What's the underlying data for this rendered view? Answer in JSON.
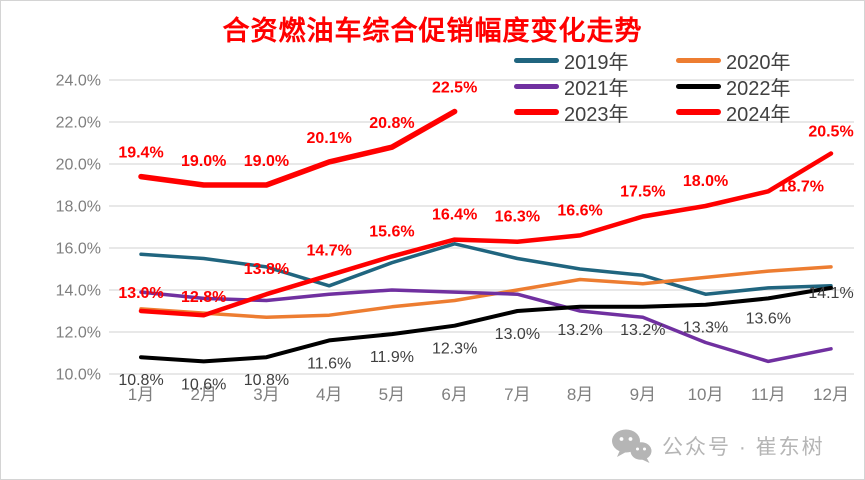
{
  "title": {
    "text": "合资燃油车综合促销幅度变化走势",
    "color": "#FF0000"
  },
  "watermark": {
    "icon": "wechat-icon",
    "text": "公众号 · 崔东树"
  },
  "chart_data": {
    "type": "line",
    "title": "合资燃油车综合促销幅度变化走势",
    "categories": [
      "1月",
      "2月",
      "3月",
      "4月",
      "5月",
      "6月",
      "7月",
      "8月",
      "9月",
      "10月",
      "11月",
      "12月"
    ],
    "yticks": [
      "10.0%",
      "12.0%",
      "14.0%",
      "16.0%",
      "18.0%",
      "20.0%",
      "22.0%",
      "24.0%"
    ],
    "ylim": [
      10,
      24
    ],
    "grid": true,
    "grid_color": "#D9D9D9",
    "axis_color": "#7F7F7F",
    "legend_position": "top-right",
    "series": [
      {
        "name": "2019年",
        "color": "#20657F",
        "stroke_width": 3.5,
        "data_labels": false,
        "values": [
          15.7,
          15.5,
          15.1,
          14.2,
          15.3,
          16.2,
          15.5,
          15.0,
          14.7,
          13.8,
          14.1,
          14.2
        ]
      },
      {
        "name": "2020年",
        "color": "#ED7D31",
        "stroke_width": 3.5,
        "data_labels": false,
        "values": [
          13.1,
          12.9,
          12.7,
          12.8,
          13.2,
          13.5,
          14.0,
          14.5,
          14.3,
          14.6,
          14.9,
          15.1
        ]
      },
      {
        "name": "2021年",
        "color": "#7030A0",
        "stroke_width": 3.5,
        "data_labels": false,
        "values": [
          13.9,
          13.6,
          13.5,
          13.8,
          14.0,
          13.9,
          13.8,
          13.0,
          12.7,
          11.5,
          10.6,
          11.2
        ]
      },
      {
        "name": "2022年",
        "color": "#000000",
        "stroke_width": 4,
        "data_labels": true,
        "label_color": "#3F3F3F",
        "label_weight": "400",
        "label_dy": 28,
        "label_overrides": {
          "10": {
            "dy": 25
          },
          "11": {
            "dy": 10
          }
        },
        "values": [
          10.8,
          10.6,
          10.8,
          11.6,
          11.9,
          12.3,
          13.0,
          13.2,
          13.2,
          13.3,
          13.6,
          14.1
        ]
      },
      {
        "name": "2023年",
        "color": "#FF0000",
        "stroke_width": 4.5,
        "data_labels": true,
        "label_color": "#FF0000",
        "label_weight": "700",
        "label_dy": -20,
        "label_overrides": {
          "0": {
            "dy": -13
          },
          "1": {
            "dy": -13
          },
          "10": {
            "dx": 33,
            "dy": 0
          },
          "11": {
            "dy": -17
          }
        },
        "values": [
          13.0,
          12.8,
          13.8,
          14.7,
          15.6,
          16.4,
          16.3,
          16.6,
          17.5,
          18.0,
          18.7,
          20.5
        ]
      },
      {
        "name": "2024年",
        "color": "#FF0000",
        "stroke_width": 5.5,
        "data_labels": true,
        "label_color": "#FF0000",
        "label_weight": "700",
        "label_dy": -19,
        "values": [
          19.4,
          19.0,
          19.0,
          20.1,
          20.8,
          22.5,
          null,
          null,
          null,
          null,
          null,
          null
        ]
      }
    ]
  }
}
